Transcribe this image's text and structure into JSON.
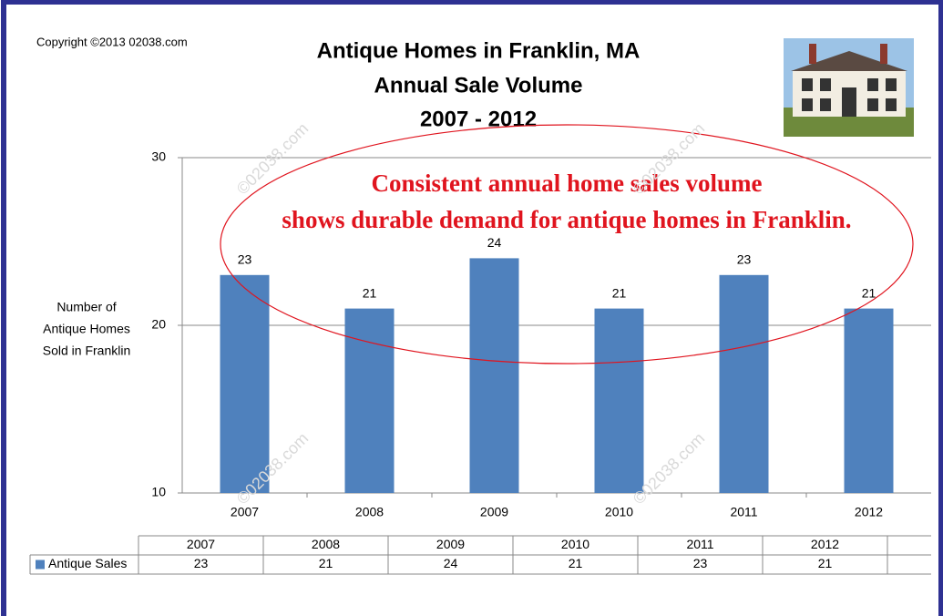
{
  "chart_data": {
    "type": "bar",
    "title": [
      "Antique Homes in Franklin, MA",
      "Annual Sale Volume",
      "2007 - 2012"
    ],
    "copyright": "Copyright ©2013 02038.com",
    "annotation": [
      "Consistent annual home sales volume",
      "shows durable demand for antique homes in Franklin."
    ],
    "watermark": "©02038.com",
    "y_label": [
      "Number of",
      "Antique Homes",
      "Sold in Franklin"
    ],
    "categories": [
      "2007",
      "2008",
      "2009",
      "2010",
      "2011",
      "2012"
    ],
    "series": [
      {
        "name": "Antique Sales",
        "color": "#4f81bd",
        "values": [
          23,
          21,
          24,
          21,
          23,
          21
        ]
      }
    ],
    "ylim": [
      10,
      30
    ],
    "yticks": [
      10,
      20,
      30
    ],
    "grid": true
  }
}
